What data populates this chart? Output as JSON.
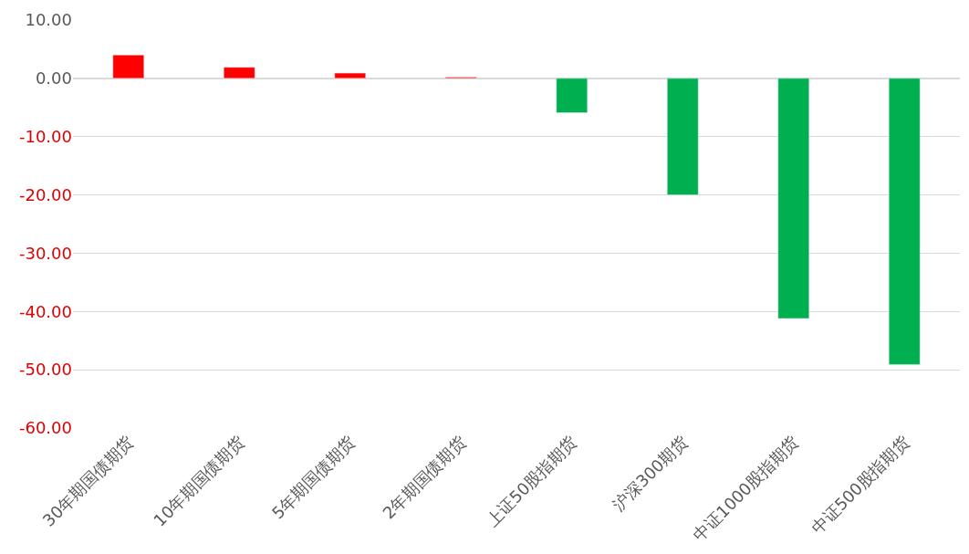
{
  "chart_data": {
    "type": "bar",
    "categories": [
      "30年期国债期货",
      "10年期国债期货",
      "5年期国债期货",
      "2年期国债期货",
      "上证50股指期货",
      "沪深300期货",
      "中证1000股指期货",
      "中证500股指期货"
    ],
    "values": [
      4.0,
      1.9,
      0.9,
      0.2,
      -5.9,
      -20.0,
      -41.2,
      -49.1
    ],
    "colors": [
      "#ff0000",
      "#ff0000",
      "#ff0000",
      "#ff0000",
      "#00b050",
      "#00b050",
      "#00b050",
      "#00b050"
    ],
    "ylim": [
      -60,
      10
    ],
    "yticks": [
      {
        "value": 10,
        "label": "10.00"
      },
      {
        "value": 0,
        "label": "0.00"
      },
      {
        "value": -10,
        "label": "-10.00"
      },
      {
        "value": -20,
        "label": "-20.00"
      },
      {
        "value": -30,
        "label": "-30.00"
      },
      {
        "value": -40,
        "label": "-40.00"
      },
      {
        "value": -50,
        "label": "-50.00"
      },
      {
        "value": -60,
        "label": "-60.00"
      }
    ],
    "grid": "y"
  }
}
